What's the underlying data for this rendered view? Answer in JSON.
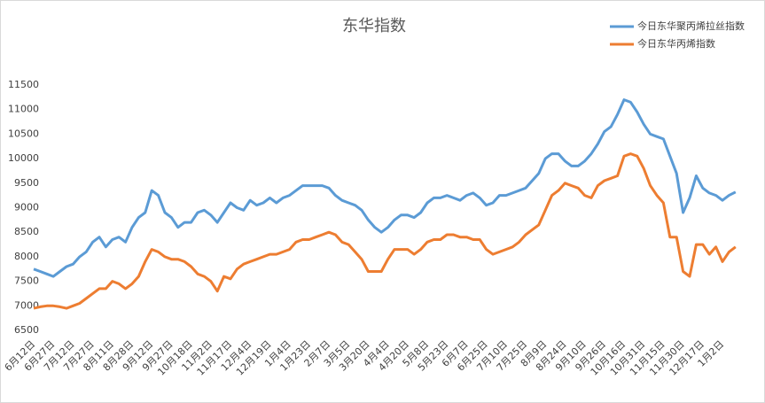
{
  "chart_data": {
    "type": "line",
    "title": "东华指数",
    "categories": [
      "6月12日",
      null,
      null,
      "6月27日",
      null,
      null,
      "7月12日",
      null,
      null,
      "7月27日",
      null,
      null,
      "8月11日",
      null,
      null,
      "8月28日",
      null,
      null,
      "9月12日",
      null,
      null,
      "9月27日",
      null,
      null,
      "10月18日",
      null,
      null,
      "11月2日",
      null,
      null,
      "11月17日",
      null,
      null,
      "12月4日",
      null,
      null,
      "12月19日",
      null,
      null,
      "1月4日",
      null,
      null,
      "1月23日",
      null,
      null,
      "2月7日",
      null,
      null,
      "3月5日",
      null,
      null,
      "3月20日",
      null,
      null,
      "4月4日",
      null,
      null,
      "4月20日",
      null,
      null,
      "5月8日",
      null,
      null,
      "5月23日",
      null,
      null,
      "6月7日",
      null,
      null,
      "6月25日",
      null,
      null,
      "7月10日",
      null,
      null,
      "7月25日",
      null,
      null,
      "8月9日",
      null,
      null,
      "8月24日",
      null,
      null,
      "9月10日",
      null,
      null,
      "9月26日",
      null,
      null,
      "10月16日",
      null,
      null,
      "10月31日",
      null,
      null,
      "11月15日",
      null,
      null,
      "11月30日",
      null,
      null,
      "12月17日",
      null,
      null,
      "1月2日",
      null,
      null
    ],
    "series": [
      {
        "name": "今日东华聚丙烯拉丝指数",
        "color": "#5b9bd5",
        "values": [
          7750,
          7700,
          7650,
          7600,
          7700,
          7800,
          7850,
          8000,
          8100,
          8300,
          8400,
          8200,
          8350,
          8400,
          8300,
          8600,
          8800,
          8900,
          9350,
          9250,
          8900,
          8800,
          8600,
          8700,
          8700,
          8900,
          8950,
          8850,
          8700,
          8900,
          9100,
          9000,
          8950,
          9150,
          9050,
          9100,
          9200,
          9100,
          9200,
          9250,
          9350,
          9450,
          9450,
          9450,
          9450,
          9400,
          9250,
          9150,
          9100,
          9050,
          8950,
          8750,
          8600,
          8500,
          8600,
          8750,
          8850,
          8850,
          8800,
          8900,
          9100,
          9200,
          9200,
          9250,
          9200,
          9150,
          9250,
          9300,
          9200,
          9050,
          9100,
          9250,
          9250,
          9300,
          9350,
          9400,
          9550,
          9700,
          10000,
          10100,
          10100,
          9950,
          9850,
          9850,
          9950,
          10100,
          10300,
          10550,
          10650,
          10900,
          11200,
          11150,
          10950,
          10700,
          10500,
          10450,
          10400,
          10050,
          9700,
          8900,
          9200,
          9650,
          9400,
          9300,
          9250,
          9150,
          9250,
          9320
        ]
      },
      {
        "name": "今日东华丙烯指数",
        "color": "#ed7d31",
        "values": [
          6950,
          6980,
          7000,
          7000,
          6980,
          6950,
          7000,
          7050,
          7150,
          7250,
          7350,
          7350,
          7500,
          7450,
          7350,
          7450,
          7600,
          7900,
          8150,
          8100,
          8000,
          7950,
          7950,
          7900,
          7800,
          7650,
          7600,
          7500,
          7300,
          7600,
          7550,
          7750,
          7850,
          7900,
          7950,
          8000,
          8050,
          8050,
          8100,
          8150,
          8300,
          8350,
          8350,
          8400,
          8450,
          8500,
          8450,
          8300,
          8250,
          8100,
          7950,
          7700,
          7700,
          7700,
          7950,
          8150,
          8150,
          8150,
          8050,
          8150,
          8300,
          8350,
          8350,
          8450,
          8450,
          8400,
          8400,
          8350,
          8350,
          8150,
          8050,
          8100,
          8150,
          8200,
          8300,
          8450,
          8550,
          8650,
          8950,
          9250,
          9350,
          9500,
          9450,
          9400,
          9250,
          9200,
          9450,
          9550,
          9600,
          9650,
          10050,
          10100,
          10050,
          9800,
          9450,
          9250,
          9100,
          8400,
          8400,
          7700,
          7600,
          8250,
          8250,
          8050,
          8200,
          7900,
          8100,
          8200
        ]
      }
    ],
    "ylim": [
      6500,
      11500
    ],
    "yticks": [
      6500,
      7000,
      7500,
      8000,
      8500,
      9000,
      9500,
      10000,
      10500,
      11000,
      11500
    ],
    "legend": "top-right"
  }
}
